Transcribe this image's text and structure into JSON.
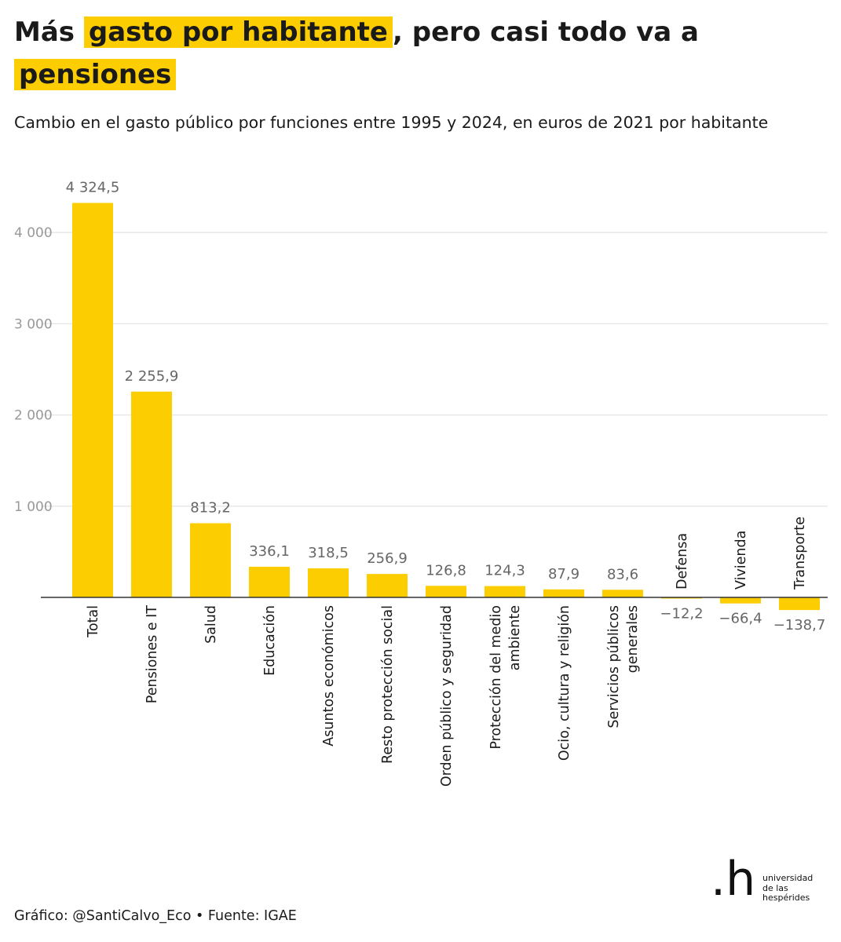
{
  "header": {
    "title_pre": "Más ",
    "title_hl1": "gasto por habitante",
    "title_mid": ", pero casi todo va a ",
    "title_hl2": "pensiones",
    "subtitle": "Cambio en el gasto público por funciones entre 1995 y 2024, en euros de 2021 por habitante"
  },
  "footer": {
    "credit": "Gráfico: @SantiCalvo_Eco • Fuente: IGAE"
  },
  "logo": {
    "mark": ".h",
    "line1": "universidad",
    "line2": "de las",
    "line3": "hespérides"
  },
  "colors": {
    "bar": "#fccd00",
    "grid": "#e6e6e6",
    "axis": "#333333"
  },
  "chart_data": {
    "type": "bar",
    "title": "Más gasto por habitante, pero casi todo va a pensiones",
    "subtitle": "Cambio en el gasto público por funciones entre 1995 y 2024, en euros de 2021 por habitante",
    "xlabel": "",
    "ylabel": "",
    "ylim": [
      -200,
      4500
    ],
    "yticks": [
      1000,
      2000,
      3000,
      4000
    ],
    "ytick_labels": [
      "1 000",
      "2 000",
      "3 000",
      "4 000"
    ],
    "grid": true,
    "categories": [
      [
        "Total"
      ],
      [
        "Pensiones e IT"
      ],
      [
        "Salud"
      ],
      [
        "Educación"
      ],
      [
        "Asuntos económicos"
      ],
      [
        "Resto protección social"
      ],
      [
        "Orden público y seguridad"
      ],
      [
        "Protección del medio",
        "ambiente"
      ],
      [
        "Ocio, cultura y religión"
      ],
      [
        "Servicios públicos",
        "generales"
      ],
      [
        "Defensa"
      ],
      [
        "Vivienda"
      ],
      [
        "Transporte"
      ]
    ],
    "values": [
      4324.5,
      2255.9,
      813.2,
      336.1,
      318.5,
      256.9,
      126.8,
      124.3,
      87.9,
      83.6,
      -12.2,
      -66.4,
      -138.7
    ],
    "value_labels": [
      "4 324,5",
      "2 255,9",
      "813,2",
      "336,1",
      "318,5",
      "256,9",
      "126,8",
      "124,3",
      "87,9",
      "83,6",
      "−12,2",
      "−66,4",
      "−138,7"
    ]
  }
}
